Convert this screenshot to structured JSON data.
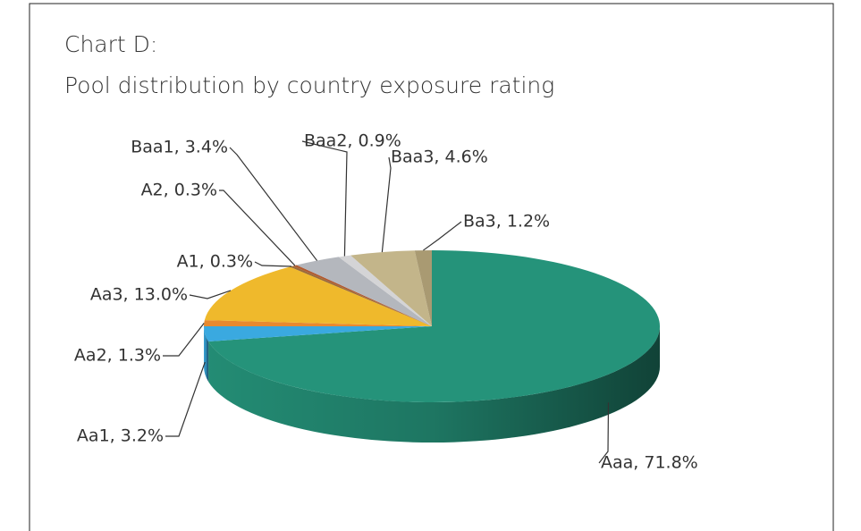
{
  "chart_data": {
    "type": "pie",
    "title": [
      "Chart D:",
      "Pool distribution by country  exposure rating"
    ],
    "values": [
      71.8,
      3.2,
      1.3,
      13.0,
      0.3,
      0.3,
      3.4,
      0.9,
      4.6,
      1.2
    ],
    "value_labels": [
      "Aaa, 71.8%",
      "Aa1, 3.2%",
      "Aa2, 1.3%",
      "Aa3, 13.0%",
      "A1, 0.3%",
      "A2, 0.3%",
      "Baa1, 3.4%",
      "Baa2, 0.9%",
      "Baa3, 4.6%",
      "Ba3, 1.2%"
    ],
    "colors": [
      "#25937a",
      "#3aa9e0",
      "#e8892f",
      "#efb92c",
      "#9a6b3a",
      "#b05a30",
      "#b4b7bd",
      "#d4d4d6",
      "#c3b58a",
      "#a99a72"
    ]
  }
}
